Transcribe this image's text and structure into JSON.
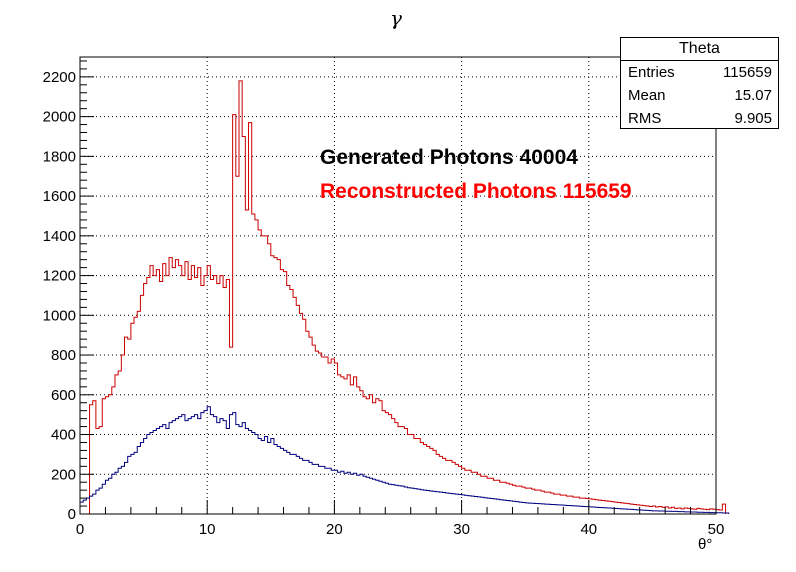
{
  "chart_data": {
    "type": "histogram",
    "title": "γ",
    "xlabel": "θ°",
    "ylabel": "",
    "xlim": [
      0,
      50
    ],
    "ylim": [
      0,
      2300
    ],
    "grid": true,
    "x_ticks": [
      0,
      10,
      20,
      30,
      40,
      50
    ],
    "y_ticks": [
      0,
      200,
      400,
      600,
      800,
      1000,
      1200,
      1400,
      1600,
      1800,
      2000,
      2200
    ],
    "bin_width": 0.25,
    "series": [
      {
        "name": "Reconstructed Photons 115659",
        "color": "#cc0000",
        "values": [
          0,
          0,
          0,
          550,
          570,
          430,
          440,
          580,
          590,
          600,
          640,
          700,
          720,
          800,
          890,
          880,
          960,
          990,
          1020,
          1100,
          1160,
          1190,
          1250,
          1200,
          1230,
          1170,
          1260,
          1200,
          1290,
          1240,
          1280,
          1250,
          1200,
          1270,
          1180,
          1250,
          1190,
          1240,
          1150,
          1200,
          1250,
          1180,
          1200,
          1160,
          1200,
          1140,
          1180,
          840,
          2010,
          1700,
          2180,
          1900,
          1530,
          1970,
          1510,
          1480,
          1430,
          1400,
          1400,
          1360,
          1300,
          1290,
          1280,
          1230,
          1220,
          1150,
          1130,
          1090,
          1050,
          1010,
          980,
          920,
          890,
          850,
          820,
          810,
          790,
          790,
          760,
          780,
          760,
          700,
          690,
          680,
          700,
          650,
          690,
          640,
          620,
          590,
          580,
          600,
          560,
          580,
          570,
          520,
          510,
          500,
          480,
          460,
          440,
          440,
          430,
          400,
          400,
          380,
          380,
          360,
          350,
          340,
          330,
          320,
          300,
          290,
          280,
          270,
          270,
          260,
          250,
          240,
          230,
          220,
          220,
          210,
          210,
          200,
          190,
          190,
          180,
          180,
          170,
          170,
          160,
          160,
          155,
          150,
          145,
          140,
          140,
          135,
          130,
          130,
          125,
          120,
          120,
          115,
          110,
          110,
          105,
          100,
          100,
          95,
          95,
          90,
          90,
          85,
          85,
          80,
          80,
          78,
          76,
          74,
          72,
          70,
          68,
          66,
          64,
          62,
          60,
          58,
          56,
          54,
          52,
          50,
          48,
          46,
          44,
          42,
          40,
          38,
          40,
          35,
          38,
          34,
          36,
          30,
          34,
          28,
          30,
          26,
          30,
          28,
          26,
          24,
          28,
          26,
          24,
          22,
          26,
          24,
          22,
          20,
          50
        ]
      },
      {
        "name": "Generated Photons 40004",
        "color": "#000080",
        "values": [
          60,
          70,
          80,
          90,
          100,
          120,
          130,
          150,
          170,
          180,
          200,
          210,
          230,
          240,
          260,
          290,
          300,
          310,
          340,
          360,
          380,
          400,
          410,
          420,
          430,
          440,
          450,
          430,
          460,
          470,
          480,
          490,
          500,
          470,
          480,
          490,
          500,
          480,
          510,
          520,
          540,
          500,
          490,
          460,
          480,
          470,
          430,
          500,
          510,
          450,
          440,
          460,
          430,
          420,
          410,
          400,
          380,
          370,
          390,
          360,
          380,
          350,
          340,
          330,
          320,
          310,
          300,
          300,
          290,
          280,
          270,
          270,
          260,
          250,
          250,
          240,
          240,
          230,
          230,
          220,
          220,
          210,
          215,
          205,
          210,
          200,
          205,
          195,
          200,
          190,
          185,
          180,
          175,
          170,
          165,
          160,
          155,
          150,
          148,
          145,
          142,
          140,
          136,
          132,
          130,
          128,
          125,
          122,
          120,
          118,
          116,
          114,
          112,
          110,
          108,
          106,
          104,
          102,
          100,
          98,
          96,
          94,
          92,
          90,
          88,
          86,
          84,
          82,
          80,
          78,
          76,
          74,
          72,
          70,
          68,
          66,
          64,
          62,
          60,
          58,
          56,
          55,
          54,
          53,
          52,
          51,
          50,
          49,
          48,
          47,
          46,
          45,
          44,
          43,
          42,
          41,
          40,
          39,
          38,
          37,
          36,
          35,
          34,
          33,
          32,
          31,
          30,
          29,
          28,
          27,
          26,
          25,
          24,
          23,
          22,
          21,
          20,
          19,
          18,
          17,
          16,
          16,
          15,
          15,
          14,
          14,
          13,
          13,
          12,
          12,
          11,
          11,
          10,
          10,
          9,
          9,
          8,
          8,
          7,
          7,
          6,
          6,
          5,
          5
        ]
      }
    ]
  },
  "title": "γ",
  "x_axis_label": "θ°",
  "legend": {
    "generated": "Generated Photons 40004",
    "reconstructed": "Reconstructed Photons 115659"
  },
  "stats": {
    "title": "Theta",
    "entries_label": "Entries",
    "entries_value": "115659",
    "mean_label": "Mean",
    "mean_value": "15.07",
    "rms_label": "RMS",
    "rms_value": "9.905"
  }
}
